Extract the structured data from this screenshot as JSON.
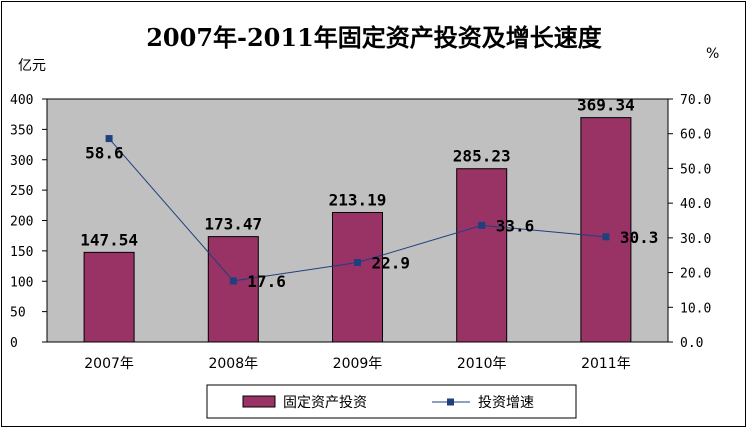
{
  "chart_data": {
    "type": "bar",
    "title": "2007年-2011年固定资产投资及增长速度",
    "y_unit_left": "亿元",
    "y_unit_right": "%",
    "categories": [
      "2007年",
      "2008年",
      "2009年",
      "2010年",
      "2011年"
    ],
    "series": [
      {
        "name": "固定资产投资",
        "type": "bar",
        "axis": "left",
        "values": [
          147.54,
          173.47,
          213.19,
          285.23,
          369.34
        ],
        "labels": [
          "147.54",
          "173.47",
          "213.19",
          "285.23",
          "369.34"
        ],
        "color": "#993366"
      },
      {
        "name": "投资增速",
        "type": "line",
        "axis": "right",
        "values": [
          58.6,
          17.6,
          22.9,
          33.6,
          30.3
        ],
        "labels": [
          "58.6",
          "17.6",
          "22.9",
          "33.6",
          "30.3"
        ],
        "color": "#1F3F7F"
      }
    ],
    "ylim_left": [
      0,
      400
    ],
    "yticks_left": [
      "0",
      "50",
      "100",
      "150",
      "200",
      "250",
      "300",
      "350",
      "400"
    ],
    "ylim_right": [
      0,
      70
    ],
    "yticks_right": [
      "0.0",
      "10.0",
      "20.0",
      "30.0",
      "40.0",
      "50.0",
      "60.0",
      "70.0"
    ],
    "plot_background": "#C0C0C0",
    "grid": false,
    "legend": "bottom"
  }
}
